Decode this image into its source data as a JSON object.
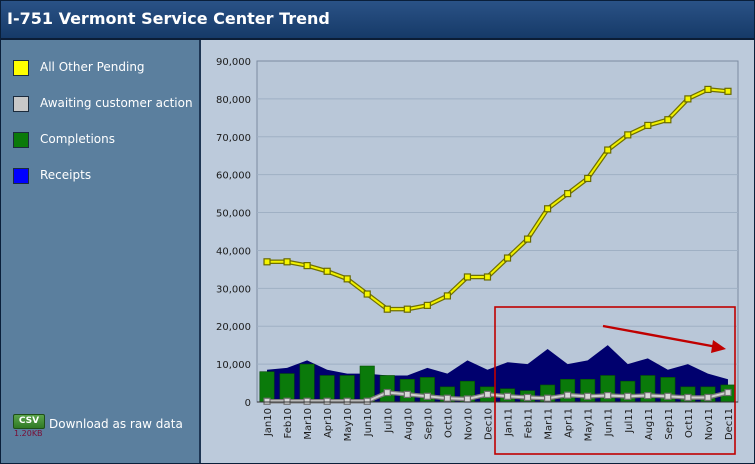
{
  "header": {
    "title": "I-751 Vermont Service Center Trend"
  },
  "legend": [
    {
      "label": "All Other Pending",
      "color": "#ffff00"
    },
    {
      "label": "Awaiting customer action",
      "color": "#c8c8c8"
    },
    {
      "label": "Completions",
      "color": "#0a7a0a"
    },
    {
      "label": "Receipts",
      "color": "#0000ff"
    }
  ],
  "download": {
    "badge": "CSV",
    "size": "1.20KB",
    "label": "Download as raw data"
  },
  "chart_data": {
    "type": "line",
    "categories": [
      "Jan10",
      "Feb10",
      "Mar10",
      "Apr10",
      "May10",
      "Jun10",
      "Jul10",
      "Aug10",
      "Sep10",
      "Oct10",
      "Nov10",
      "Dec10",
      "Jan11",
      "Feb11",
      "Mar11",
      "Apr11",
      "May11",
      "Jun11",
      "Jul11",
      "Aug11",
      "Sep11",
      "Oct11",
      "Nov11",
      "Dec11"
    ],
    "ylim": [
      0,
      90000
    ],
    "yticks": [
      0,
      10000,
      20000,
      30000,
      40000,
      50000,
      60000,
      70000,
      80000,
      90000
    ],
    "ytick_labels": [
      "0",
      "10,000",
      "20,000",
      "30,000",
      "40,000",
      "50,000",
      "60,000",
      "70,000",
      "80,000",
      "90,000"
    ],
    "grid": true,
    "series": [
      {
        "name": "All Other Pending",
        "type": "line",
        "color": "#e8e800",
        "values": [
          37000,
          37000,
          36000,
          34500,
          32500,
          28500,
          24500,
          24500,
          25500,
          28000,
          33000,
          33000,
          38000,
          43000,
          51000,
          55000,
          59000,
          66500,
          70500,
          73000,
          74500,
          80000,
          82500,
          82000
        ]
      },
      {
        "name": "Awaiting customer action",
        "type": "line",
        "color": "#c8c8c8",
        "values": [
          200,
          200,
          200,
          200,
          200,
          200,
          2500,
          2000,
          1500,
          1000,
          800,
          2000,
          1500,
          1200,
          1000,
          1800,
          1500,
          1700,
          1500,
          1700,
          1500,
          1200,
          1200,
          2500
        ]
      },
      {
        "name": "Completions",
        "type": "bar",
        "color": "#0a7a0a",
        "values": [
          8000,
          7500,
          10000,
          7000,
          7000,
          9500,
          7000,
          6000,
          6500,
          4000,
          5500,
          4000,
          3500,
          3000,
          4500,
          6000,
          6000,
          7000,
          5500,
          7000,
          6500,
          4000,
          4000,
          4500
        ]
      },
      {
        "name": "Receipts",
        "type": "area",
        "color": "#00006e",
        "values": [
          8500,
          9000,
          11000,
          8500,
          7500,
          7500,
          7000,
          7000,
          9000,
          7500,
          11000,
          8500,
          10500,
          10000,
          14000,
          10000,
          11000,
          15000,
          10000,
          11500,
          8500,
          10000,
          7500,
          6000
        ]
      }
    ],
    "annotation": {
      "type": "highlight-box",
      "color": "#c00000"
    }
  }
}
